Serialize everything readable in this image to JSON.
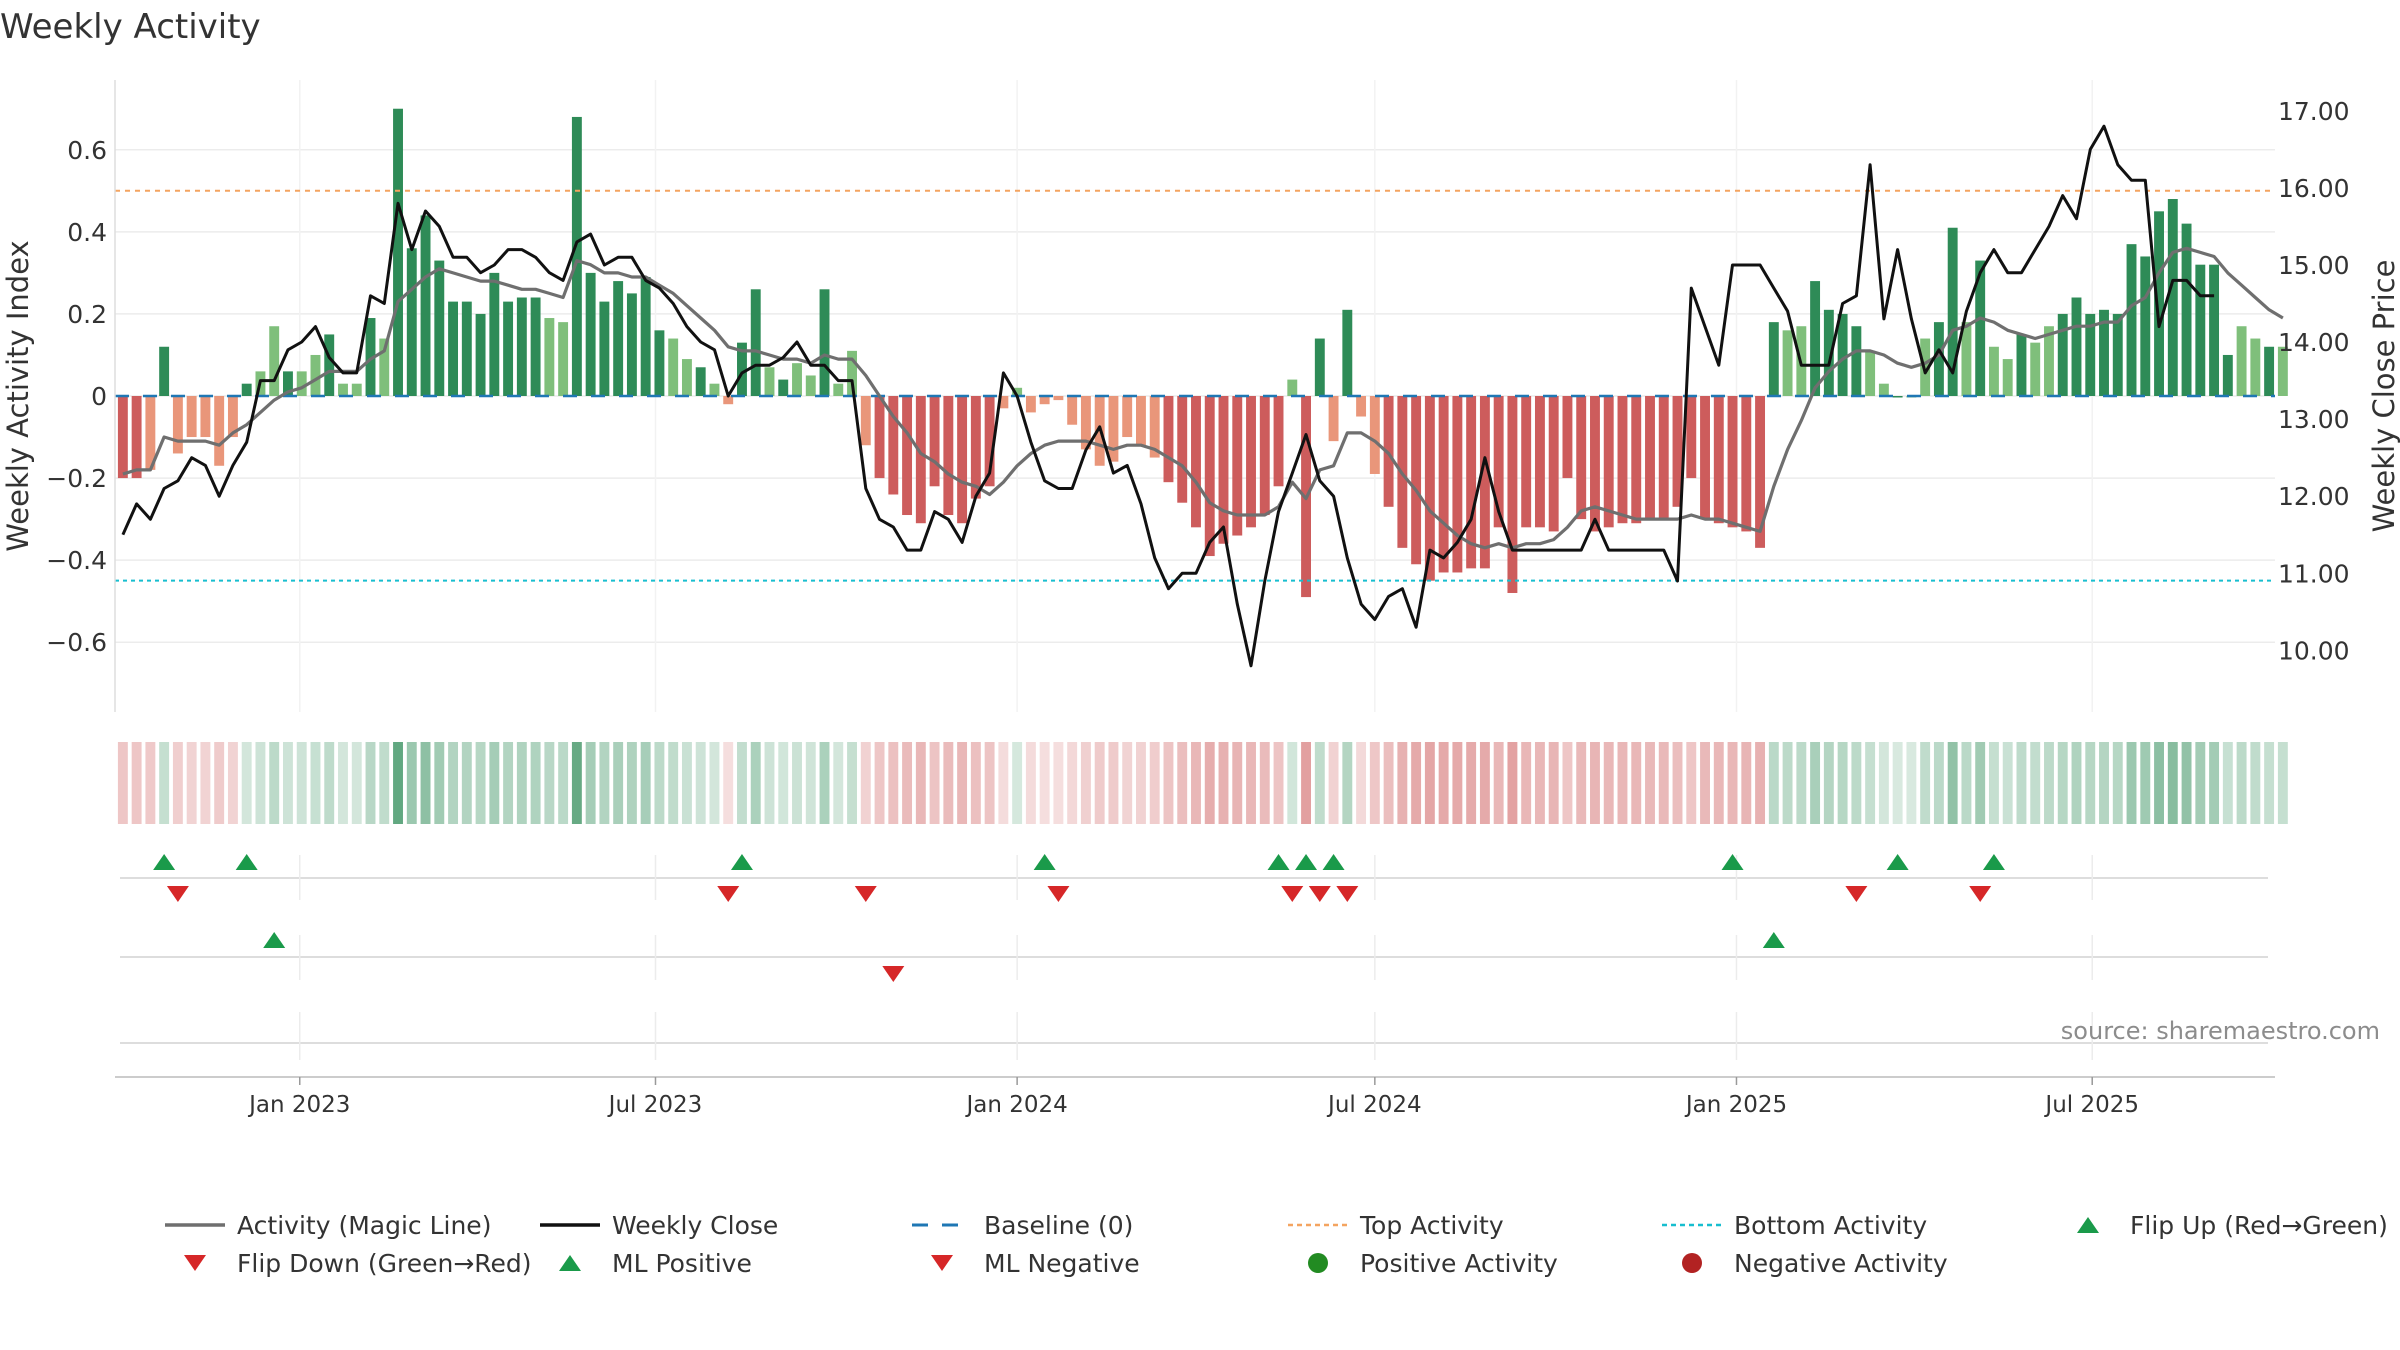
{
  "title": "Weekly Activity",
  "source": "source: sharemaestro.com",
  "colors": {
    "pos_dark": "#2e8b57",
    "pos_light": "#7fbf7b",
    "neg_dark": "#cd5c5c",
    "neg_light": "#e9967a",
    "magic_line": "#6f6f6f",
    "close_line": "#111111",
    "baseline": "#1f77b4",
    "top_line": "#f4a460",
    "bottom_line": "#17becf",
    "flip_up": "#1a9a4a",
    "flip_down": "#d62728",
    "pos_dot": "#228b22",
    "neg_dot": "#b22222"
  },
  "chart_data": {
    "type": "bar",
    "title": "Weekly Activity",
    "xlabel": "",
    "ylabel": "Weekly Activity Index",
    "ylabel_right": "Weekly Close Price",
    "x_start": "2022-10-03",
    "week_days": 7,
    "xlim": [
      "2022-09-29",
      "2025-10-02"
    ],
    "ylim": [
      -0.77,
      0.77
    ],
    "ylim_right": [
      9.2,
      17.4
    ],
    "y_ticks": [
      -0.6,
      -0.4,
      -0.2,
      0,
      0.2,
      0.4,
      0.6
    ],
    "y_tick_labels": [
      "−0.6",
      "−0.4",
      "−0.2",
      "0",
      "0.2",
      "0.4",
      "0.6"
    ],
    "y_ticks_right": [
      10,
      11,
      12,
      13,
      14,
      15,
      16,
      17
    ],
    "y_tick_labels_right": [
      "10.00",
      "11.00",
      "12.00",
      "13.00",
      "14.00",
      "15.00",
      "16.00",
      "17.00"
    ],
    "x_ticks": [
      "2023-01-01",
      "2023-07-01",
      "2024-01-01",
      "2024-07-01",
      "2025-01-01",
      "2025-07-01"
    ],
    "x_tick_labels": [
      "Jan 2023",
      "Jul 2023",
      "Jan 2024",
      "Jul 2024",
      "Jan 2025",
      "Jul 2025"
    ],
    "top_activity": 0.5,
    "bottom_activity": -0.45,
    "baseline": 0,
    "activity": [
      -0.2,
      -0.2,
      -0.18,
      0.12,
      -0.14,
      -0.1,
      -0.1,
      -0.17,
      -0.1,
      0.03,
      0.06,
      0.17,
      0.06,
      0.06,
      0.1,
      0.15,
      0.03,
      0.03,
      0.19,
      0.14,
      0.7,
      0.36,
      0.44,
      0.33,
      0.23,
      0.23,
      0.2,
      0.3,
      0.23,
      0.24,
      0.24,
      0.19,
      0.18,
      0.68,
      0.3,
      0.23,
      0.28,
      0.25,
      0.29,
      0.16,
      0.14,
      0.09,
      0.07,
      0.03,
      -0.02,
      0.13,
      0.26,
      0.07,
      0.04,
      0.08,
      0.05,
      0.26,
      0.03,
      0.11,
      -0.12,
      -0.2,
      -0.24,
      -0.29,
      -0.31,
      -0.22,
      -0.29,
      -0.31,
      -0.25,
      -0.22,
      -0.03,
      0.02,
      -0.04,
      -0.02,
      -0.01,
      -0.07,
      -0.13,
      -0.17,
      -0.16,
      -0.1,
      -0.12,
      -0.15,
      -0.21,
      -0.26,
      -0.32,
      -0.39,
      -0.36,
      -0.34,
      -0.32,
      -0.29,
      -0.22,
      0.04,
      -0.49,
      0.14,
      -0.11,
      0.21,
      -0.05,
      -0.19,
      -0.27,
      -0.37,
      -0.41,
      -0.45,
      -0.43,
      -0.43,
      -0.42,
      -0.42,
      -0.32,
      -0.48,
      -0.32,
      -0.32,
      -0.33,
      -0.2,
      -0.3,
      -0.33,
      -0.32,
      -0.31,
      -0.31,
      -0.3,
      -0.3,
      -0.27,
      -0.2,
      -0.3,
      -0.31,
      -0.32,
      -0.33,
      -0.37,
      0.18,
      0.16,
      0.17,
      0.28,
      0.21,
      0.2,
      0.17,
      0.11,
      0.03,
      0.0,
      0.0,
      0.14,
      0.18,
      0.41,
      0.18,
      0.33,
      0.12,
      0.09,
      0.15,
      0.13,
      0.17,
      0.2,
      0.24,
      0.2,
      0.21,
      0.2,
      0.37,
      0.34,
      0.45,
      0.48,
      0.42,
      0.32,
      0.32,
      0.1,
      0.17,
      0.14,
      0.12,
      0.12
    ],
    "magic_line": [
      -0.19,
      -0.18,
      -0.18,
      -0.1,
      -0.11,
      -0.11,
      -0.11,
      -0.12,
      -0.09,
      -0.07,
      -0.04,
      -0.01,
      0.01,
      0.02,
      0.04,
      0.06,
      0.06,
      0.06,
      0.09,
      0.11,
      0.23,
      0.26,
      0.29,
      0.31,
      0.3,
      0.29,
      0.28,
      0.28,
      0.27,
      0.26,
      0.26,
      0.25,
      0.24,
      0.33,
      0.32,
      0.3,
      0.3,
      0.29,
      0.29,
      0.27,
      0.25,
      0.22,
      0.19,
      0.16,
      0.12,
      0.11,
      0.11,
      0.1,
      0.09,
      0.09,
      0.08,
      0.1,
      0.09,
      0.09,
      0.05,
      0.0,
      -0.05,
      -0.09,
      -0.14,
      -0.16,
      -0.19,
      -0.21,
      -0.22,
      -0.24,
      -0.21,
      -0.17,
      -0.14,
      -0.12,
      -0.11,
      -0.11,
      -0.11,
      -0.12,
      -0.13,
      -0.12,
      -0.12,
      -0.13,
      -0.15,
      -0.17,
      -0.21,
      -0.26,
      -0.28,
      -0.29,
      -0.29,
      -0.29,
      -0.27,
      -0.21,
      -0.25,
      -0.18,
      -0.17,
      -0.09,
      -0.09,
      -0.11,
      -0.14,
      -0.19,
      -0.23,
      -0.28,
      -0.31,
      -0.34,
      -0.36,
      -0.37,
      -0.36,
      -0.37,
      -0.36,
      -0.36,
      -0.35,
      -0.32,
      -0.28,
      -0.27,
      -0.28,
      -0.29,
      -0.3,
      -0.3,
      -0.3,
      -0.3,
      -0.29,
      -0.3,
      -0.3,
      -0.31,
      -0.32,
      -0.33,
      -0.22,
      -0.13,
      -0.06,
      0.02,
      0.06,
      0.09,
      0.11,
      0.11,
      0.1,
      0.08,
      0.07,
      0.08,
      0.1,
      0.16,
      0.17,
      0.19,
      0.18,
      0.16,
      0.15,
      0.14,
      0.15,
      0.16,
      0.17,
      0.17,
      0.18,
      0.18,
      0.22,
      0.24,
      0.3,
      0.35,
      0.36,
      0.35,
      0.34,
      0.3,
      0.27,
      0.24,
      0.21,
      0.19
    ],
    "weekly_close": [
      11.5,
      11.9,
      11.7,
      12.1,
      12.2,
      12.5,
      12.4,
      12.0,
      12.4,
      12.7,
      13.5,
      13.5,
      13.9,
      14.0,
      14.2,
      13.8,
      13.6,
      13.6,
      14.6,
      14.5,
      15.8,
      15.2,
      15.7,
      15.5,
      15.1,
      15.1,
      14.9,
      15.0,
      15.2,
      15.2,
      15.1,
      14.9,
      14.8,
      15.3,
      15.4,
      15.0,
      15.1,
      15.1,
      14.8,
      14.7,
      14.5,
      14.2,
      14.0,
      13.9,
      13.3,
      13.6,
      13.7,
      13.7,
      13.8,
      14.0,
      13.7,
      13.7,
      13.5,
      13.5,
      12.1,
      11.7,
      11.6,
      11.3,
      11.3,
      11.8,
      11.7,
      11.4,
      12.0,
      12.3,
      13.6,
      13.3,
      12.7,
      12.2,
      12.1,
      12.1,
      12.6,
      12.9,
      12.3,
      12.4,
      11.9,
      11.2,
      10.8,
      11.0,
      11.0,
      11.4,
      11.6,
      10.6,
      9.8,
      10.9,
      11.8,
      12.3,
      12.8,
      12.2,
      12.0,
      11.2,
      10.6,
      10.4,
      10.7,
      10.8,
      10.3,
      11.3,
      11.2,
      11.4,
      11.7,
      12.5,
      11.8,
      11.3,
      11.3,
      11.3,
      11.3,
      11.3,
      11.3,
      11.7,
      11.3,
      11.3,
      11.3,
      11.3,
      11.3,
      10.9,
      14.7,
      14.2,
      13.7,
      15.0,
      15.0,
      15.0,
      14.7,
      14.4,
      13.7,
      13.7,
      13.7,
      14.5,
      14.6,
      16.3,
      14.3,
      15.2,
      14.3,
      13.6,
      13.9,
      13.6,
      14.4,
      14.9,
      15.2,
      14.9,
      14.9,
      15.2,
      15.5,
      15.9,
      15.6,
      16.5,
      16.8,
      16.3,
      16.1,
      16.1,
      14.2,
      14.8,
      14.8,
      14.6,
      14.6
    ],
    "heat_strip": "activity",
    "events": {
      "flip_up": [
        3,
        9,
        45,
        67,
        84,
        86,
        88,
        117,
        129,
        136
      ],
      "flip_down": [
        4,
        44,
        54,
        68,
        85,
        87,
        89,
        126,
        135
      ],
      "ml_positive": [
        11,
        120
      ],
      "ml_negative": [
        56
      ],
      "positive_activity": [],
      "negative_activity": []
    }
  },
  "legend": [
    {
      "label": "Activity (Magic Line)",
      "kind": "line",
      "key": "magic_line"
    },
    {
      "label": "Weekly Close",
      "kind": "line",
      "key": "close_line"
    },
    {
      "label": "Baseline (0)",
      "kind": "dash",
      "key": "baseline"
    },
    {
      "label": "Top Activity",
      "kind": "dot-line",
      "key": "top_line"
    },
    {
      "label": "Bottom Activity",
      "kind": "dot-line",
      "key": "bottom_line"
    },
    {
      "label": "Flip Up (Red→Green)",
      "kind": "tri-up",
      "key": "flip_up"
    },
    {
      "label": "Flip Down (Green→Red)",
      "kind": "tri-down",
      "key": "flip_down"
    },
    {
      "label": "ML Positive",
      "kind": "tri-up",
      "key": "flip_up"
    },
    {
      "label": "ML Negative",
      "kind": "tri-down",
      "key": "flip_down"
    },
    {
      "label": "Positive Activity",
      "kind": "circle",
      "key": "pos_dot"
    },
    {
      "label": "Negative Activity",
      "kind": "circle",
      "key": "neg_dot"
    }
  ]
}
